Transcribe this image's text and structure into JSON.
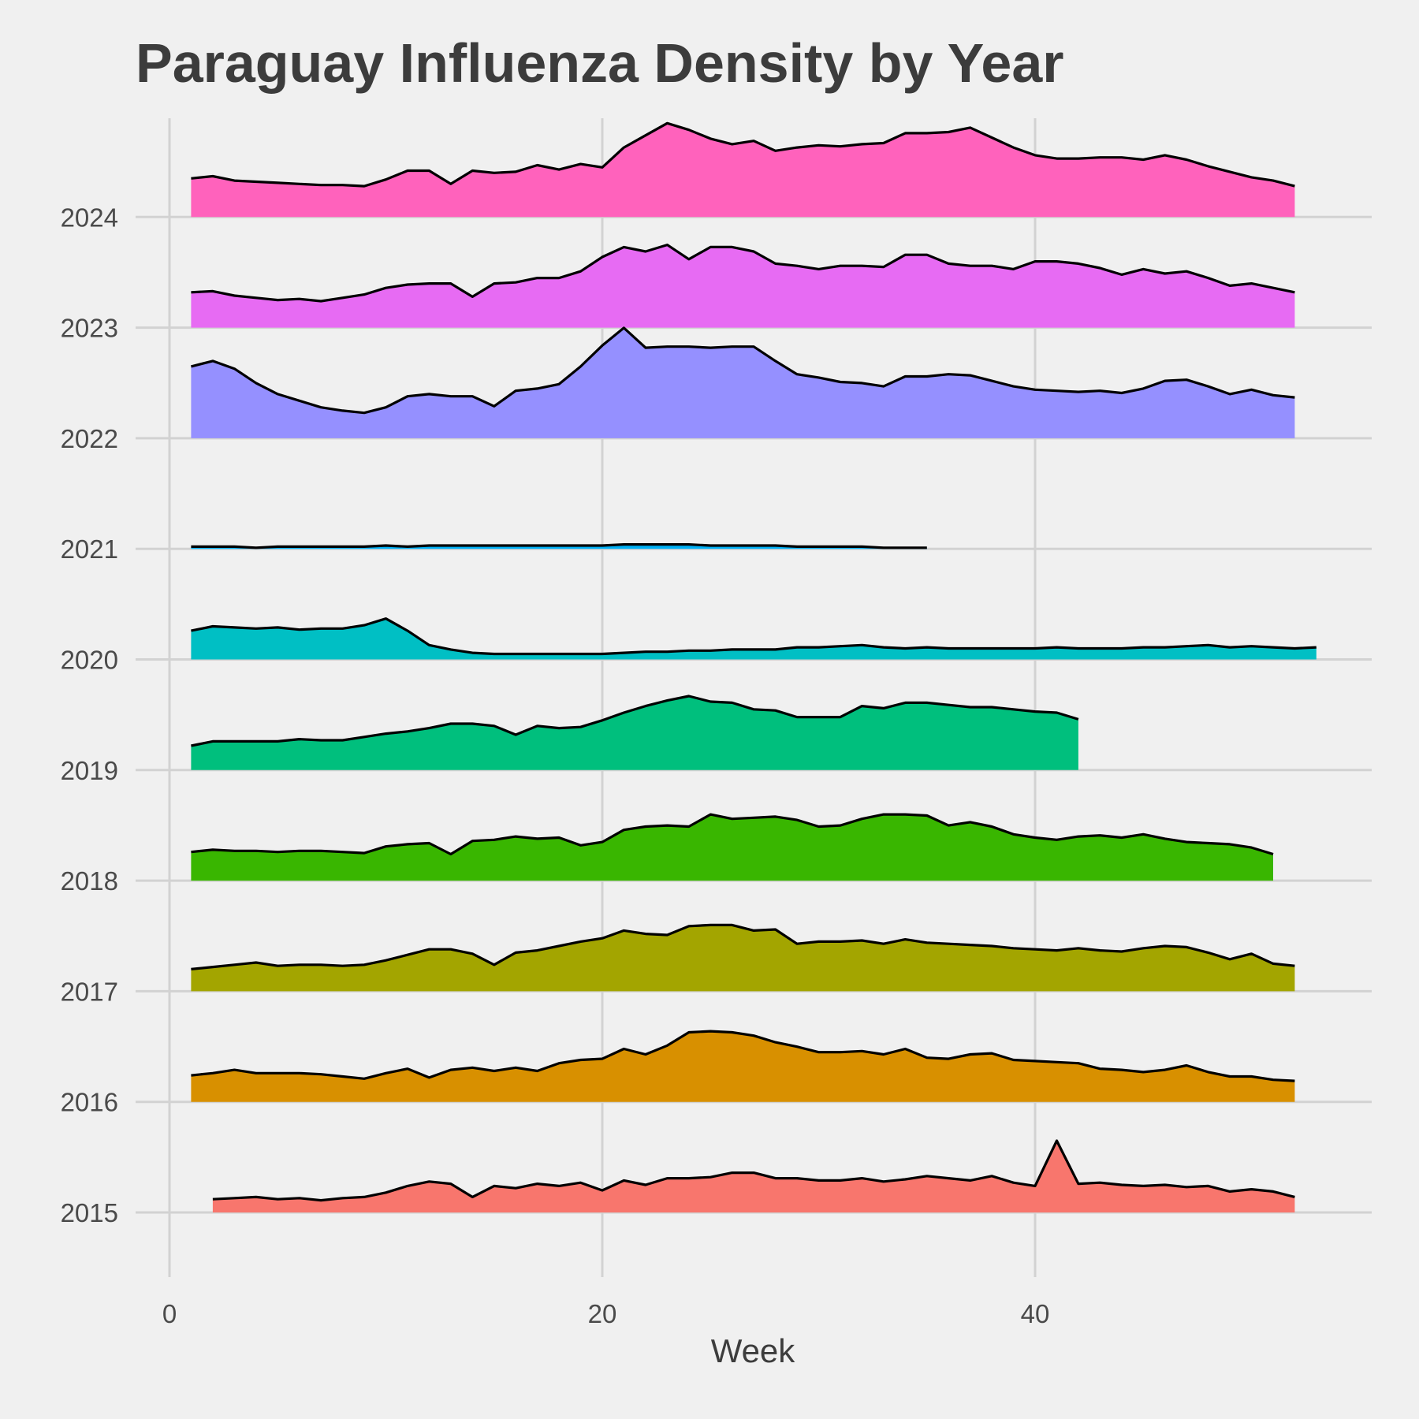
{
  "chart_data": {
    "type": "area",
    "subtype": "ridgeline",
    "title": "Paraguay Influenza Density by Year",
    "xlabel": "Week",
    "ylabel": "",
    "xlim": [
      0,
      55
    ],
    "xticks": [
      0,
      20,
      40
    ],
    "grid": true,
    "legend": "none",
    "series": [
      {
        "name": "2015",
        "color": "#F8766D",
        "start_week": 2,
        "values": [
          0.12,
          0.13,
          0.14,
          0.12,
          0.13,
          0.11,
          0.13,
          0.14,
          0.18,
          0.24,
          0.28,
          0.26,
          0.14,
          0.24,
          0.22,
          0.26,
          0.24,
          0.27,
          0.2,
          0.29,
          0.25,
          0.31,
          0.31,
          0.32,
          0.36,
          0.36,
          0.31,
          0.31,
          0.29,
          0.29,
          0.31,
          0.28,
          0.3,
          0.33,
          0.31,
          0.29,
          0.33,
          0.27,
          0.24,
          0.65,
          0.26,
          0.27,
          0.25,
          0.24,
          0.25,
          0.23,
          0.24,
          0.19,
          0.21,
          0.19,
          0.14
        ]
      },
      {
        "name": "2016",
        "color": "#D89000",
        "start_week": 1,
        "values": [
          0.24,
          0.26,
          0.29,
          0.26,
          0.26,
          0.26,
          0.25,
          0.23,
          0.21,
          0.26,
          0.3,
          0.22,
          0.29,
          0.31,
          0.28,
          0.31,
          0.28,
          0.35,
          0.38,
          0.39,
          0.48,
          0.43,
          0.51,
          0.63,
          0.64,
          0.63,
          0.6,
          0.54,
          0.5,
          0.45,
          0.45,
          0.46,
          0.43,
          0.48,
          0.4,
          0.39,
          0.43,
          0.44,
          0.38,
          0.37,
          0.36,
          0.35,
          0.3,
          0.29,
          0.27,
          0.29,
          0.33,
          0.27,
          0.23,
          0.23,
          0.2,
          0.19
        ]
      },
      {
        "name": "2017",
        "color": "#A3A500",
        "start_week": 1,
        "values": [
          0.2,
          0.22,
          0.24,
          0.26,
          0.23,
          0.24,
          0.24,
          0.23,
          0.24,
          0.28,
          0.33,
          0.38,
          0.38,
          0.34,
          0.24,
          0.35,
          0.37,
          0.41,
          0.45,
          0.48,
          0.55,
          0.52,
          0.51,
          0.59,
          0.6,
          0.6,
          0.55,
          0.56,
          0.43,
          0.45,
          0.45,
          0.46,
          0.43,
          0.47,
          0.44,
          0.43,
          0.42,
          0.41,
          0.39,
          0.38,
          0.37,
          0.39,
          0.37,
          0.36,
          0.39,
          0.41,
          0.4,
          0.35,
          0.29,
          0.34,
          0.25,
          0.23
        ]
      },
      {
        "name": "2018",
        "color": "#39B600",
        "start_week": 1,
        "values": [
          0.26,
          0.28,
          0.27,
          0.27,
          0.26,
          0.27,
          0.27,
          0.26,
          0.25,
          0.31,
          0.33,
          0.34,
          0.24,
          0.36,
          0.37,
          0.4,
          0.38,
          0.39,
          0.32,
          0.35,
          0.46,
          0.49,
          0.5,
          0.49,
          0.6,
          0.56,
          0.57,
          0.58,
          0.55,
          0.49,
          0.5,
          0.56,
          0.6,
          0.6,
          0.59,
          0.5,
          0.53,
          0.49,
          0.42,
          0.39,
          0.37,
          0.4,
          0.41,
          0.39,
          0.42,
          0.38,
          0.35,
          0.34,
          0.33,
          0.3,
          0.24
        ]
      },
      {
        "name": "2019",
        "color": "#00BF7D",
        "start_week": 1,
        "values": [
          0.22,
          0.26,
          0.26,
          0.26,
          0.26,
          0.28,
          0.27,
          0.27,
          0.3,
          0.33,
          0.35,
          0.38,
          0.42,
          0.42,
          0.4,
          0.32,
          0.4,
          0.38,
          0.39,
          0.45,
          0.52,
          0.58,
          0.63,
          0.67,
          0.62,
          0.61,
          0.55,
          0.54,
          0.48,
          0.48,
          0.48,
          0.58,
          0.56,
          0.61,
          0.61,
          0.59,
          0.57,
          0.57,
          0.55,
          0.53,
          0.52,
          0.46
        ]
      },
      {
        "name": "2020",
        "color": "#00BFC4",
        "start_week": 1,
        "values": [
          0.26,
          0.3,
          0.29,
          0.28,
          0.29,
          0.27,
          0.28,
          0.28,
          0.31,
          0.37,
          0.26,
          0.13,
          0.09,
          0.06,
          0.05,
          0.05,
          0.05,
          0.05,
          0.05,
          0.05,
          0.06,
          0.07,
          0.07,
          0.08,
          0.08,
          0.09,
          0.09,
          0.09,
          0.11,
          0.11,
          0.12,
          0.13,
          0.11,
          0.1,
          0.11,
          0.1,
          0.1,
          0.1,
          0.1,
          0.1,
          0.11,
          0.1,
          0.1,
          0.1,
          0.11,
          0.11,
          0.12,
          0.13,
          0.11,
          0.12,
          0.11,
          0.1,
          0.11
        ]
      },
      {
        "name": "2021",
        "color": "#00B0F6",
        "start_week": 1,
        "values": [
          0.02,
          0.02,
          0.02,
          0.01,
          0.02,
          0.02,
          0.02,
          0.02,
          0.02,
          0.03,
          0.02,
          0.03,
          0.03,
          0.03,
          0.03,
          0.03,
          0.03,
          0.03,
          0.03,
          0.03,
          0.04,
          0.04,
          0.04,
          0.04,
          0.03,
          0.03,
          0.03,
          0.03,
          0.02,
          0.02,
          0.02,
          0.02,
          0.01,
          0.01,
          0.01
        ]
      },
      {
        "name": "2022",
        "color": "#9590FF",
        "start_week": 1,
        "values": [
          0.65,
          0.7,
          0.63,
          0.5,
          0.4,
          0.34,
          0.28,
          0.25,
          0.23,
          0.28,
          0.38,
          0.4,
          0.38,
          0.38,
          0.29,
          0.43,
          0.45,
          0.49,
          0.65,
          0.84,
          1.0,
          0.82,
          0.83,
          0.83,
          0.82,
          0.83,
          0.83,
          0.7,
          0.58,
          0.55,
          0.51,
          0.5,
          0.47,
          0.56,
          0.56,
          0.58,
          0.57,
          0.52,
          0.47,
          0.44,
          0.43,
          0.42,
          0.43,
          0.41,
          0.45,
          0.52,
          0.53,
          0.47,
          0.4,
          0.44,
          0.39,
          0.37
        ]
      },
      {
        "name": "2023",
        "color": "#E76BF3",
        "start_week": 1,
        "values": [
          0.32,
          0.33,
          0.29,
          0.27,
          0.25,
          0.26,
          0.24,
          0.27,
          0.3,
          0.36,
          0.39,
          0.4,
          0.4,
          0.28,
          0.4,
          0.41,
          0.45,
          0.45,
          0.51,
          0.64,
          0.73,
          0.69,
          0.75,
          0.62,
          0.73,
          0.73,
          0.69,
          0.58,
          0.56,
          0.53,
          0.56,
          0.56,
          0.55,
          0.66,
          0.66,
          0.58,
          0.56,
          0.56,
          0.53,
          0.6,
          0.6,
          0.58,
          0.54,
          0.48,
          0.53,
          0.49,
          0.51,
          0.45,
          0.38,
          0.4,
          0.36,
          0.32
        ]
      },
      {
        "name": "2024",
        "color": "#FF62BC",
        "start_week": 1,
        "values": [
          0.35,
          0.37,
          0.33,
          0.32,
          0.31,
          0.3,
          0.29,
          0.29,
          0.28,
          0.34,
          0.42,
          0.42,
          0.3,
          0.42,
          0.4,
          0.41,
          0.47,
          0.43,
          0.48,
          0.45,
          0.63,
          0.74,
          0.85,
          0.79,
          0.71,
          0.66,
          0.69,
          0.6,
          0.63,
          0.65,
          0.64,
          0.66,
          0.67,
          0.76,
          0.76,
          0.77,
          0.81,
          0.72,
          0.63,
          0.56,
          0.53,
          0.53,
          0.54,
          0.54,
          0.52,
          0.56,
          0.52,
          0.46,
          0.41,
          0.36,
          0.33,
          0.28
        ]
      }
    ]
  }
}
